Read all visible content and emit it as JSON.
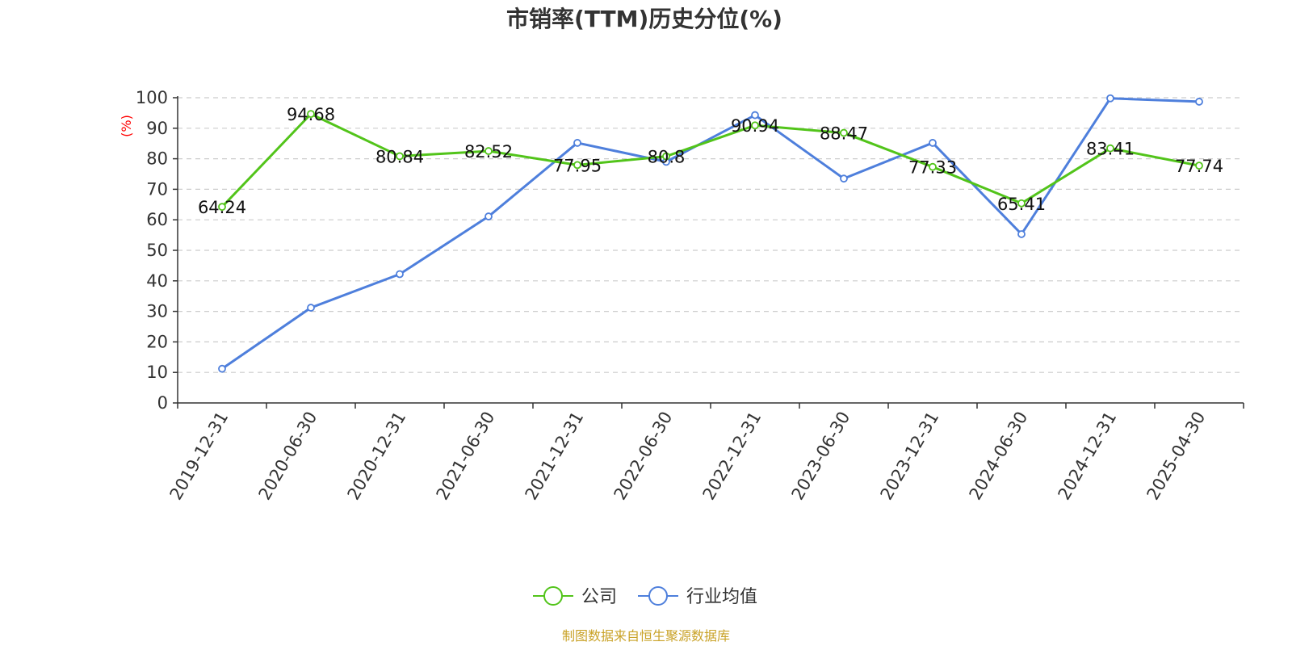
{
  "chart_data": {
    "type": "line",
    "title": "市销率(TTM)历史分位(%)",
    "ylabel": "(%)",
    "xlabel": "",
    "ylim": [
      0,
      100
    ],
    "yticks": [
      0,
      10,
      20,
      30,
      40,
      50,
      60,
      70,
      80,
      90,
      100
    ],
    "grid": true,
    "legend_position": "bottom",
    "categories": [
      "2019-12-31",
      "2020-06-30",
      "2020-12-31",
      "2021-06-30",
      "2021-12-31",
      "2022-06-30",
      "2022-12-31",
      "2023-06-30",
      "2023-12-31",
      "2024-06-30",
      "2024-12-31",
      "2025-04-30"
    ],
    "series": [
      {
        "name": "公司",
        "color": "#52c41a",
        "values": [
          64.24,
          94.68,
          80.84,
          82.52,
          77.95,
          80.8,
          90.94,
          88.47,
          77.33,
          65.41,
          83.41,
          77.74
        ],
        "data_labels": [
          "64.24",
          "94.68",
          "80.84",
          "82.52",
          "77.95",
          "80.8",
          "90.94",
          "88.47",
          "77.33",
          "65.41",
          "83.41",
          "77.74"
        ]
      },
      {
        "name": "行业均值",
        "color": "#4e7fdc",
        "values": [
          11.2,
          31.2,
          42.2,
          61.1,
          85.2,
          79.0,
          94.3,
          73.5,
          85.2,
          55.3,
          99.8,
          98.7
        ]
      }
    ],
    "source": "制图数据来自恒生聚源数据库",
    "source_color": "#c9a227"
  }
}
